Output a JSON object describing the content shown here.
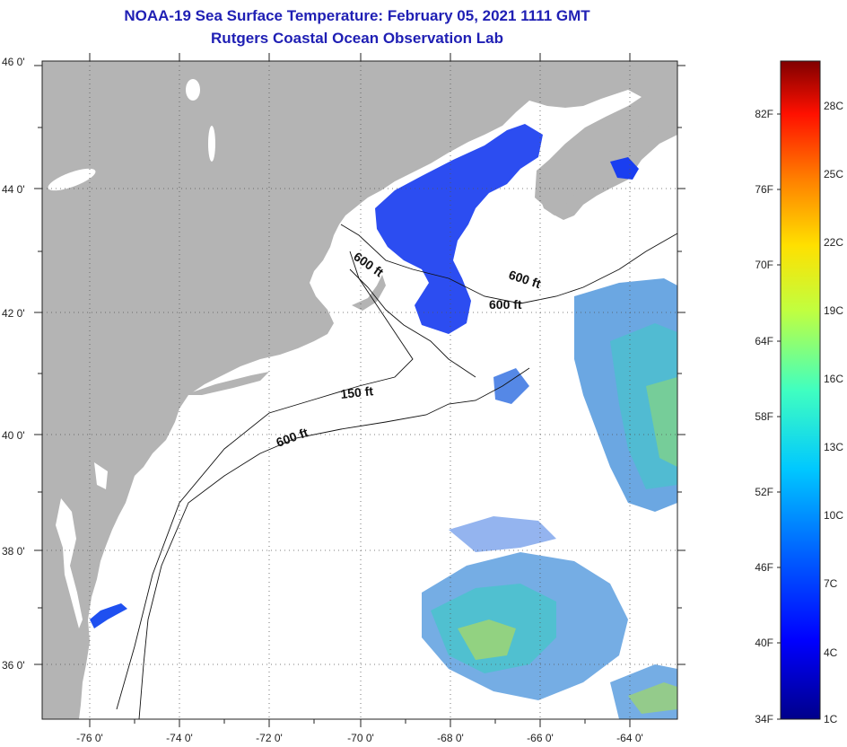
{
  "title_line1": "NOAA-19 Sea Surface Temperature:  February 05, 2021 1111 GMT",
  "title_line2": "Rutgers Coastal Ocean Observation Lab",
  "lat_labels": [
    "46 0'",
    "44 0'",
    "42 0'",
    "40 0'",
    "38 0'",
    "36 0'"
  ],
  "lon_labels": [
    "-76 0'",
    "-74 0'",
    "-72 0'",
    "-70 0'",
    "-68 0'",
    "-66 0'",
    "-64 0'"
  ],
  "contour_labels": [
    "600 ft",
    "600 ft",
    "600 ft",
    "150 ft",
    "600 ft"
  ],
  "colorbar": {
    "f_labels": [
      "82F",
      "76F",
      "70F",
      "64F",
      "58F",
      "52F",
      "46F",
      "40F",
      "34F"
    ],
    "c_labels": [
      "28C",
      "25C",
      "22C",
      "19C",
      "16C",
      "13C",
      "10C",
      "7C",
      "4C",
      "1C"
    ]
  },
  "colors": {
    "land": "#b4b4b4",
    "title": "#1f1fb4"
  }
}
